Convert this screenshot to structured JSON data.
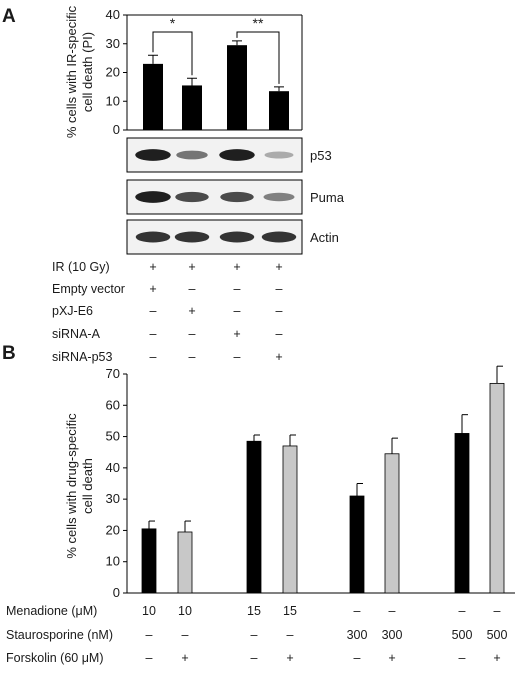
{
  "panel_a": {
    "label": "A",
    "chart_data": {
      "type": "bar",
      "ylabel": "% cells with IR-specific cell death (PI)",
      "ylabel_lines": [
        "% cells with IR-specific",
        "cell death (PI)"
      ],
      "ylim": [
        0,
        40
      ],
      "yticks": [
        "0",
        "10",
        "20",
        "30",
        "40"
      ],
      "values": [
        23,
        15.5,
        29.5,
        13.5
      ],
      "errors": [
        3,
        2.5,
        1.5,
        1.5
      ],
      "bar_color": "#000000",
      "significance": [
        {
          "from": 0,
          "to": 1,
          "label": "*"
        },
        {
          "from": 2,
          "to": 3,
          "label": "**"
        }
      ]
    },
    "blots": [
      {
        "label": "p53",
        "intensities": [
          0.95,
          0.55,
          0.95,
          0.3
        ]
      },
      {
        "label": "Puma",
        "intensities": [
          0.95,
          0.75,
          0.75,
          0.5
        ]
      },
      {
        "label": "Actin",
        "intensities": [
          0.85,
          0.85,
          0.85,
          0.85
        ]
      }
    ],
    "conditions": [
      {
        "label": "IR (10 Gy)",
        "marks": [
          "+",
          "+",
          "+",
          "+"
        ]
      },
      {
        "label": "Empty vector",
        "marks": [
          "+",
          "–",
          "–",
          "–"
        ]
      },
      {
        "label": "pXJ-E6",
        "marks": [
          "–",
          "+",
          "–",
          "–"
        ]
      },
      {
        "label": "siRNA-A",
        "marks": [
          "–",
          "–",
          "+",
          "–"
        ]
      },
      {
        "label": "siRNA-p53",
        "marks": [
          "–",
          "–",
          "–",
          "+"
        ]
      }
    ]
  },
  "panel_b": {
    "label": "B",
    "chart_data": {
      "type": "bar",
      "ylabel": "% cells with drug-specific cell death",
      "ylabel_lines": [
        "% cells with drug-specific",
        "cell death"
      ],
      "ylim": [
        0,
        70
      ],
      "yticks": [
        "0",
        "10",
        "20",
        "30",
        "40",
        "50",
        "60",
        "70"
      ],
      "series": [
        {
          "name": "",
          "color": "#000000",
          "values": [
            20.5,
            48.5,
            31,
            51
          ],
          "errors": [
            2.5,
            2,
            4,
            6
          ]
        },
        {
          "name": "",
          "color": "#c8c8c8",
          "values": [
            19.5,
            47,
            44.5,
            67
          ],
          "errors": [
            3.5,
            3.5,
            5,
            5.5
          ]
        }
      ]
    },
    "conditions": [
      {
        "label": "Menadione (μM)",
        "marks": [
          "10",
          "10",
          "15",
          "15",
          "–",
          "–",
          "–",
          "–"
        ]
      },
      {
        "label": "Staurosporine (nM)",
        "marks": [
          "–",
          "–",
          "–",
          "–",
          "300",
          "300",
          "500",
          "500"
        ]
      },
      {
        "label": "Forskolin (60 μM)",
        "marks": [
          "–",
          "+",
          "–",
          "+",
          "–",
          "+",
          "–",
          "+"
        ]
      }
    ]
  }
}
